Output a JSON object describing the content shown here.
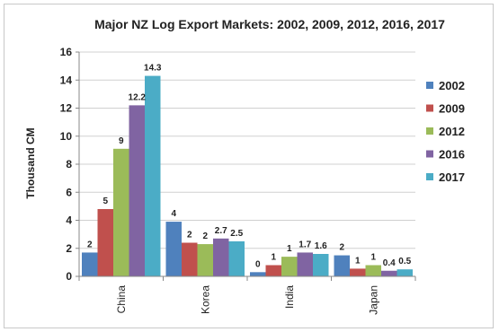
{
  "chart_data": {
    "type": "bar",
    "title": "Major NZ Log Export Markets: 2002, 2009, 2012, 2016, 2017",
    "xlabel": "",
    "ylabel": "Thousand CM",
    "ylim": [
      0,
      16
    ],
    "yticks": [
      "0",
      "2",
      "4",
      "6",
      "8",
      "10",
      "12",
      "14",
      "16"
    ],
    "categories": [
      "China",
      "Korea",
      "India",
      "Japan"
    ],
    "grid": "horizontal",
    "legend": "right",
    "series": [
      {
        "name": "2002",
        "color": "#4f81bd",
        "values": [
          1.7,
          3.9,
          0.3,
          1.5
        ],
        "labels": [
          "2",
          "4",
          "0",
          "2"
        ]
      },
      {
        "name": "2009",
        "color": "#c0504d",
        "values": [
          4.8,
          2.4,
          0.8,
          0.55
        ],
        "labels": [
          "5",
          "2",
          "1",
          "1"
        ]
      },
      {
        "name": "2012",
        "color": "#9bbb59",
        "values": [
          9.1,
          2.3,
          1.4,
          0.8
        ],
        "labels": [
          "9",
          "2",
          "1",
          "1"
        ]
      },
      {
        "name": "2016",
        "color": "#8064a2",
        "values": [
          12.2,
          2.7,
          1.7,
          0.4
        ],
        "labels": [
          "12.2",
          "2.7",
          "1.7",
          "0.4"
        ]
      },
      {
        "name": "2017",
        "color": "#4bacc6",
        "values": [
          14.3,
          2.5,
          1.6,
          0.5
        ],
        "labels": [
          "14.3",
          "2.5",
          "1.6",
          "0.5"
        ]
      }
    ]
  }
}
